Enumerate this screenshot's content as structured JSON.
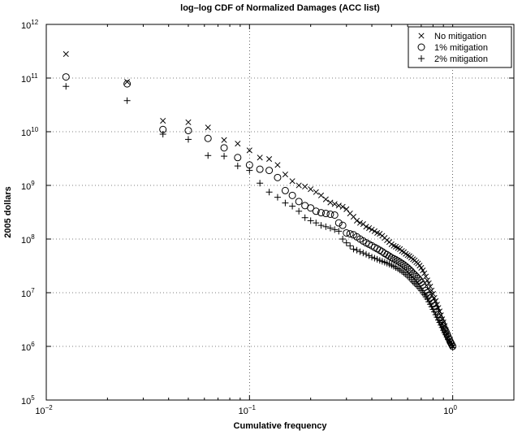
{
  "chart_data": {
    "type": "scatter",
    "title": "log–log CDF of Normalized Damages (ACC list)",
    "xlabel": "Cumulative frequency",
    "ylabel": "2005 dollars",
    "xscale": "log",
    "yscale": "log",
    "xlim": [
      0.01,
      2
    ],
    "ylim": [
      100000,
      1000000000000
    ],
    "grid": true,
    "legend_position": "top-right",
    "x_ticks": [
      {
        "base": "10",
        "exp": "−2",
        "value": 0.01
      },
      {
        "base": "10",
        "exp": "−1",
        "value": 0.1
      },
      {
        "base": "10",
        "exp": "0",
        "value": 1
      }
    ],
    "y_ticks": [
      {
        "base": "10",
        "exp": "5",
        "value": 100000
      },
      {
        "base": "10",
        "exp": "6",
        "value": 1000000
      },
      {
        "base": "10",
        "exp": "7",
        "value": 10000000
      },
      {
        "base": "10",
        "exp": "8",
        "value": 100000000
      },
      {
        "base": "10",
        "exp": "9",
        "value": 1000000000
      },
      {
        "base": "10",
        "exp": "10",
        "value": 10000000000
      },
      {
        "base": "10",
        "exp": "11",
        "value": 100000000000
      },
      {
        "base": "10",
        "exp": "12",
        "value": 1000000000000
      }
    ],
    "series": [
      {
        "name": "No mitigation",
        "marker": "x",
        "x": [
          0.0125,
          0.025,
          0.0375,
          0.05,
          0.0625,
          0.075,
          0.0875,
          0.1,
          0.1125,
          0.125,
          0.1375,
          0.15,
          0.1625,
          0.175,
          0.1875,
          0.2,
          0.2125,
          0.225,
          0.2375,
          0.25,
          0.2625,
          0.275,
          0.2875,
          0.3,
          0.3125,
          0.325,
          0.3375,
          0.35,
          0.3625,
          0.375,
          0.3875,
          0.4,
          0.4125,
          0.425,
          0.4375,
          0.45,
          0.4625,
          0.475,
          0.4875,
          0.5,
          0.5125,
          0.525,
          0.5375,
          0.55,
          0.5625,
          0.575,
          0.5875,
          0.6,
          0.6125,
          0.625,
          0.6375,
          0.65,
          0.6625,
          0.675,
          0.6875,
          0.7,
          0.7125,
          0.725,
          0.7375,
          0.75,
          0.7625,
          0.775,
          0.7875,
          0.8,
          0.8125,
          0.825,
          0.8375,
          0.85,
          0.8625,
          0.875,
          0.8875,
          0.9,
          0.9125,
          0.925,
          0.9375,
          0.95,
          0.9625,
          0.975,
          0.9875,
          1.0
        ],
        "y": [
          280000000000,
          85000000000,
          16000000000,
          15000000000,
          12000000000,
          7000000000,
          6000000000,
          4500000000,
          3300000000,
          3100000000,
          2400000000,
          1600000000,
          1200000000,
          1000000000,
          950000000,
          850000000,
          750000000,
          650000000,
          550000000,
          480000000,
          450000000,
          420000000,
          400000000,
          360000000,
          300000000,
          260000000,
          220000000,
          200000000,
          190000000,
          170000000,
          160000000,
          150000000,
          140000000,
          130000000,
          125000000,
          115000000,
          105000000,
          95000000,
          88000000,
          80000000,
          75000000,
          72000000,
          68000000,
          65000000,
          60000000,
          57000000,
          53000000,
          50000000,
          48000000,
          45000000,
          42000000,
          40000000,
          37000000,
          35000000,
          32000000,
          29000000,
          26000000,
          23000000,
          20000000,
          17000000,
          15000000,
          13000000,
          11000000,
          9500000,
          8000000,
          7000000,
          6000000,
          5200000,
          4500000,
          3800000,
          3200000,
          2800000,
          2400000,
          2000000,
          1700000,
          1500000,
          1300000,
          1200000,
          1100000,
          1000000
        ]
      },
      {
        "name": "1% mitigation",
        "marker": "o",
        "x": [
          0.0125,
          0.025,
          0.0375,
          0.05,
          0.0625,
          0.075,
          0.0875,
          0.1,
          0.1125,
          0.125,
          0.1375,
          0.15,
          0.1625,
          0.175,
          0.1875,
          0.2,
          0.2125,
          0.225,
          0.2375,
          0.25,
          0.2625,
          0.275,
          0.2875,
          0.3,
          0.3125,
          0.325,
          0.3375,
          0.35,
          0.3625,
          0.375,
          0.3875,
          0.4,
          0.4125,
          0.425,
          0.4375,
          0.45,
          0.4625,
          0.475,
          0.4875,
          0.5,
          0.5125,
          0.525,
          0.5375,
          0.55,
          0.5625,
          0.575,
          0.5875,
          0.6,
          0.6125,
          0.625,
          0.6375,
          0.65,
          0.6625,
          0.675,
          0.6875,
          0.7,
          0.7125,
          0.725,
          0.7375,
          0.75,
          0.7625,
          0.775,
          0.7875,
          0.8,
          0.8125,
          0.825,
          0.8375,
          0.85,
          0.8625,
          0.875,
          0.8875,
          0.9,
          0.9125,
          0.925,
          0.9375,
          0.95,
          0.9625,
          0.975,
          0.9875,
          1.0
        ],
        "y": [
          105000000000,
          78000000000,
          11000000000,
          10500000000,
          7500000000,
          5000000000,
          3300000000,
          2400000000,
          2000000000,
          1900000000,
          1400000000,
          800000000,
          650000000,
          500000000,
          420000000,
          380000000,
          330000000,
          310000000,
          300000000,
          290000000,
          280000000,
          200000000,
          180000000,
          130000000,
          125000000,
          120000000,
          110000000,
          100000000,
          92000000,
          85000000,
          80000000,
          75000000,
          70000000,
          66000000,
          62000000,
          58000000,
          54000000,
          51000000,
          48000000,
          45000000,
          43000000,
          41000000,
          39000000,
          37000000,
          35000000,
          33000000,
          31000000,
          29000000,
          27000000,
          25000000,
          23000000,
          21500000,
          20000000,
          18500000,
          17000000,
          15500000,
          14000000,
          12500000,
          11000000,
          10000000,
          9000000,
          8000000,
          7200000,
          6400000,
          5700000,
          5000000,
          4400000,
          3900000,
          3400000,
          3000000,
          2700000,
          2400000,
          2100000,
          1900000,
          1700000,
          1500000,
          1350000,
          1200000,
          1100000,
          1000000
        ]
      },
      {
        "name": "2% mitigation",
        "marker": "+",
        "x": [
          0.0125,
          0.025,
          0.0375,
          0.05,
          0.0625,
          0.075,
          0.0875,
          0.1,
          0.1125,
          0.125,
          0.1375,
          0.15,
          0.1625,
          0.175,
          0.1875,
          0.2,
          0.2125,
          0.225,
          0.2375,
          0.25,
          0.2625,
          0.275,
          0.2875,
          0.3,
          0.3125,
          0.325,
          0.3375,
          0.35,
          0.3625,
          0.375,
          0.3875,
          0.4,
          0.4125,
          0.425,
          0.4375,
          0.45,
          0.4625,
          0.475,
          0.4875,
          0.5,
          0.5125,
          0.525,
          0.5375,
          0.55,
          0.5625,
          0.575,
          0.5875,
          0.6,
          0.6125,
          0.625,
          0.6375,
          0.65,
          0.6625,
          0.675,
          0.6875,
          0.7,
          0.7125,
          0.725,
          0.7375,
          0.75,
          0.7625,
          0.775,
          0.7875,
          0.8,
          0.8125,
          0.825,
          0.8375,
          0.85,
          0.8625,
          0.875,
          0.8875,
          0.9,
          0.9125,
          0.925,
          0.9375,
          0.95,
          0.9625,
          0.975,
          0.9875,
          1.0
        ],
        "y": [
          70000000000,
          38000000000,
          9000000000,
          7200000000,
          3600000000,
          3500000000,
          2300000000,
          1900000000,
          1100000000,
          750000000,
          600000000,
          470000000,
          410000000,
          330000000,
          250000000,
          220000000,
          200000000,
          180000000,
          170000000,
          160000000,
          150000000,
          140000000,
          100000000,
          85000000,
          75000000,
          65000000,
          62000000,
          58000000,
          55000000,
          52000000,
          49000000,
          46000000,
          44000000,
          42000000,
          40000000,
          38500000,
          37000000,
          35500000,
          34000000,
          32500000,
          31000000,
          29500000,
          28000000,
          26500000,
          25000000,
          23500000,
          22000000,
          20500000,
          19000000,
          17500000,
          16000000,
          15000000,
          14000000,
          13000000,
          12000000,
          11000000,
          10000000,
          9200000,
          8400000,
          7600000,
          6800000,
          6100000,
          5500000,
          4900000,
          4400000,
          3900000,
          3500000,
          3100000,
          2800000,
          2500000,
          2250000,
          2000000,
          1800000,
          1650000,
          1500000,
          1350000,
          1250000,
          1150000,
          1050000,
          950000
        ]
      }
    ]
  }
}
